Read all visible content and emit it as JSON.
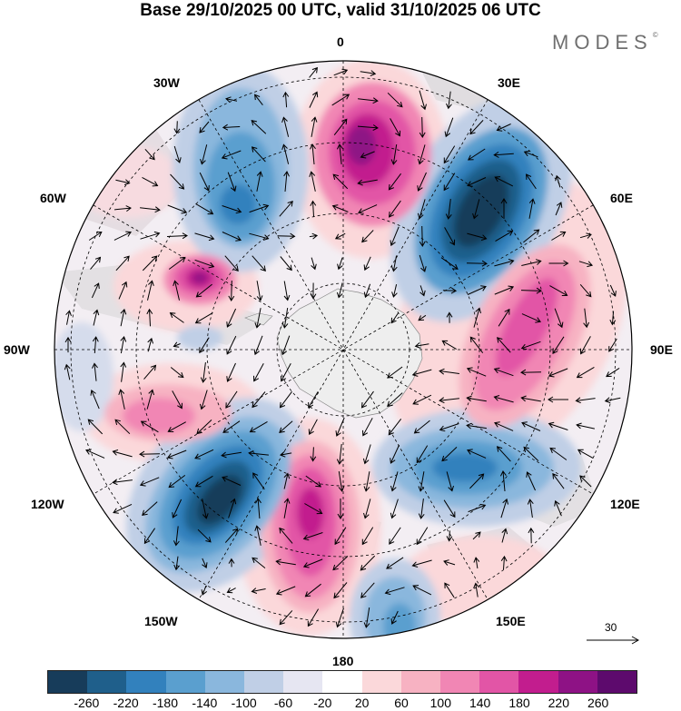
{
  "title": "Base 29/10/2025 00 UTC, valid 31/10/2025 06 UTC",
  "brand": "MODES",
  "brand_mark": "©",
  "longitude_labels": {
    "top": "0",
    "lon30e": "30E",
    "lon60e": "60E",
    "lon90e": "90E",
    "lon120e": "120E",
    "lon150e": "150E",
    "bottom": "180",
    "lon150w": "150W",
    "lon120w": "120W",
    "lon90w": "90W",
    "lon60w": "60W",
    "lon30w": "30W"
  },
  "vector_reference": {
    "label": "30"
  },
  "colorbar": {
    "colors": [
      "#173c5a",
      "#1f5f8b",
      "#3281bd",
      "#5a9fcf",
      "#8ab7dd",
      "#c0cfe6",
      "#e6e6f2",
      "#ffffff",
      "#fbd8da",
      "#f7b2c2",
      "#f186b4",
      "#e255a6",
      "#c21d8e",
      "#8e1285",
      "#5d0a6d"
    ],
    "labels": [
      "-260",
      "-220",
      "-180",
      "-140",
      "-100",
      "-60",
      "-20",
      "20",
      "60",
      "100",
      "140",
      "180",
      "220",
      "260"
    ]
  },
  "colors": {
    "land": "#dcdcdc",
    "antarctica": "#eeeeee",
    "grid": "#000000"
  }
}
